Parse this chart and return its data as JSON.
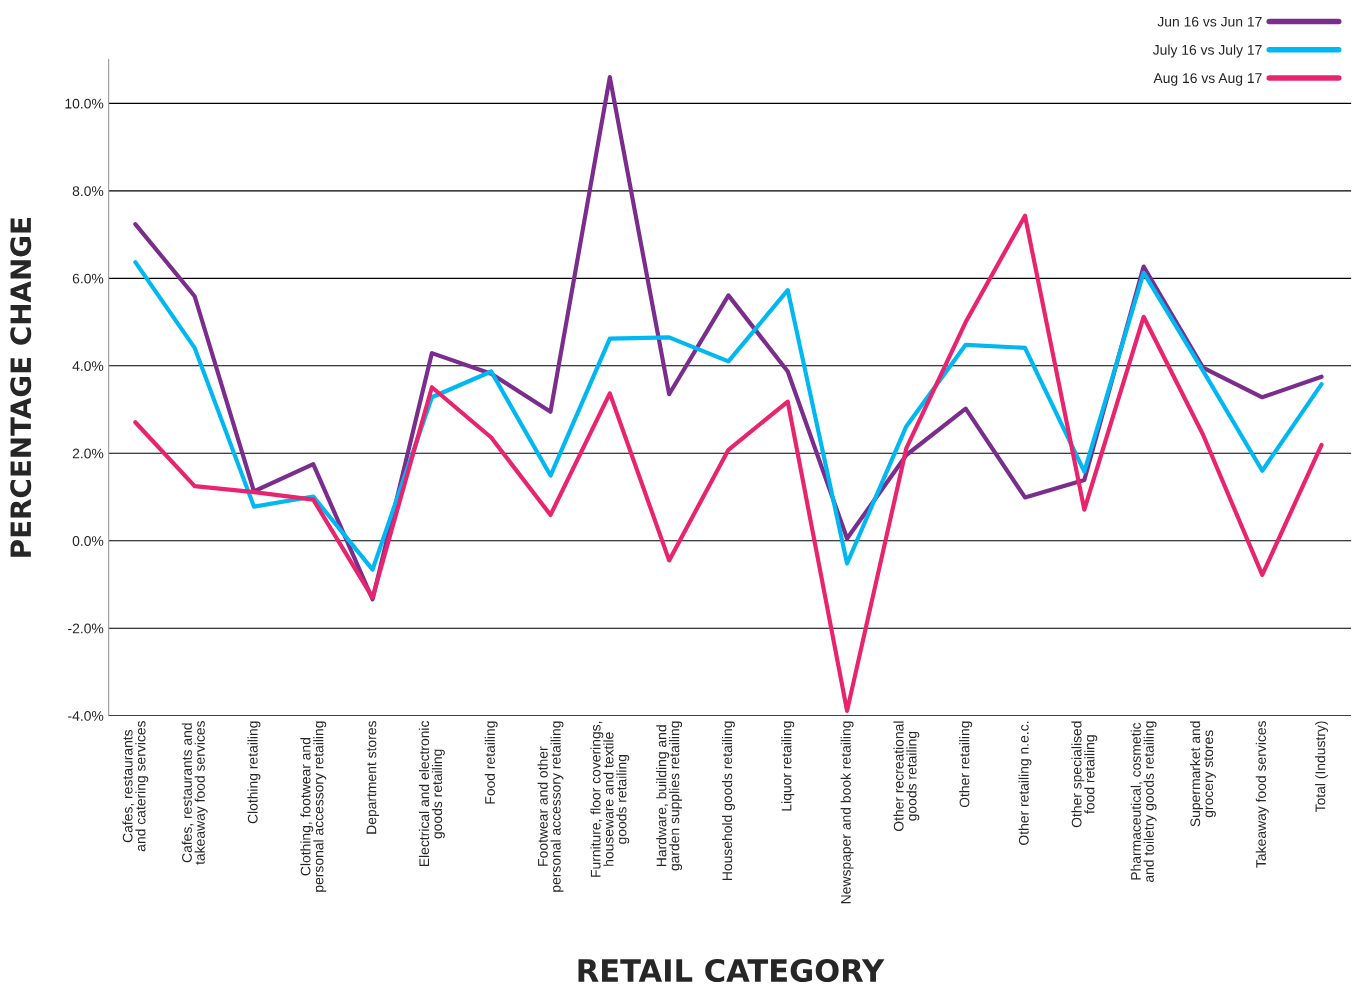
{
  "chart_data": {
    "type": "line",
    "xlabel": "RETAIL CATEGORY",
    "ylabel": "PERCENTAGE CHANGE",
    "categories": [
      "Cafes, restaurants\nand catering services",
      "Cafes, restaurants and\ntakeaway food services",
      "Clothing retailing",
      "Clothing, footwear and\npersonal accessory retailing",
      "Department stores",
      "Electrical and electronic\ngoods retailing",
      "Food retailing",
      "Footwear and other\npersonal accessory retailing",
      "Furniture, floor coverings,\nhouseware and textile\ngoods retailing",
      "Hardware, building and\ngarden supplies retailing",
      "Household goods retailing",
      "Liquor retailing",
      "Newspaper and book retailing",
      "Other recreational\ngoods retailing",
      "Other retailing",
      "Other retailing n.e.c.",
      "Other specialised\nfood retailing",
      "Pharmaceutical, cosmetic\nand toiletry goods retailing",
      "Supermarket and\ngrocery stores",
      "Takeaway food services",
      "Total (Industry)"
    ],
    "series": [
      {
        "name": "Jun 16 vs Jun 17",
        "color": "#7b2d8e",
        "values": [
          7.24,
          5.59,
          1.13,
          1.75,
          -1.34,
          4.29,
          3.82,
          2.95,
          10.6,
          3.35,
          5.61,
          3.87,
          0.05,
          1.96,
          3.02,
          0.99,
          1.39,
          6.27,
          3.96,
          3.28,
          3.75
        ]
      },
      {
        "name": "July 16 vs July 17",
        "color": "#00b8f1",
        "values": [
          6.37,
          4.41,
          0.78,
          1.01,
          -0.66,
          3.28,
          3.87,
          1.49,
          4.62,
          4.65,
          4.1,
          5.73,
          -0.52,
          2.62,
          4.48,
          4.41,
          1.58,
          6.13,
          3.89,
          1.6,
          3.58
        ]
      },
      {
        "name": "Aug 16 vs Aug 17",
        "color": "#e8246f",
        "values": [
          2.71,
          1.25,
          1.11,
          0.94,
          -1.3,
          3.51,
          2.36,
          0.59,
          3.37,
          -0.45,
          2.08,
          3.18,
          -3.89,
          2.12,
          5.0,
          7.43,
          0.71,
          5.12,
          2.43,
          -0.78,
          2.19
        ]
      }
    ],
    "ylim": [
      -4.0,
      11.0
    ],
    "yticks": [
      {
        "value": -4,
        "label": "-4.0%"
      },
      {
        "value": -2,
        "label": "-2.0%"
      },
      {
        "value": 0,
        "label": "0.0%"
      },
      {
        "value": 2,
        "label": "2.0%"
      },
      {
        "value": 4,
        "label": "4.0%"
      },
      {
        "value": 6,
        "label": "6.0%"
      },
      {
        "value": 8,
        "label": "8.0%"
      },
      {
        "value": 10,
        "label": "10.0%"
      }
    ],
    "grid": "y",
    "legend": "top right",
    "marker": "none",
    "line_style": "solid"
  }
}
